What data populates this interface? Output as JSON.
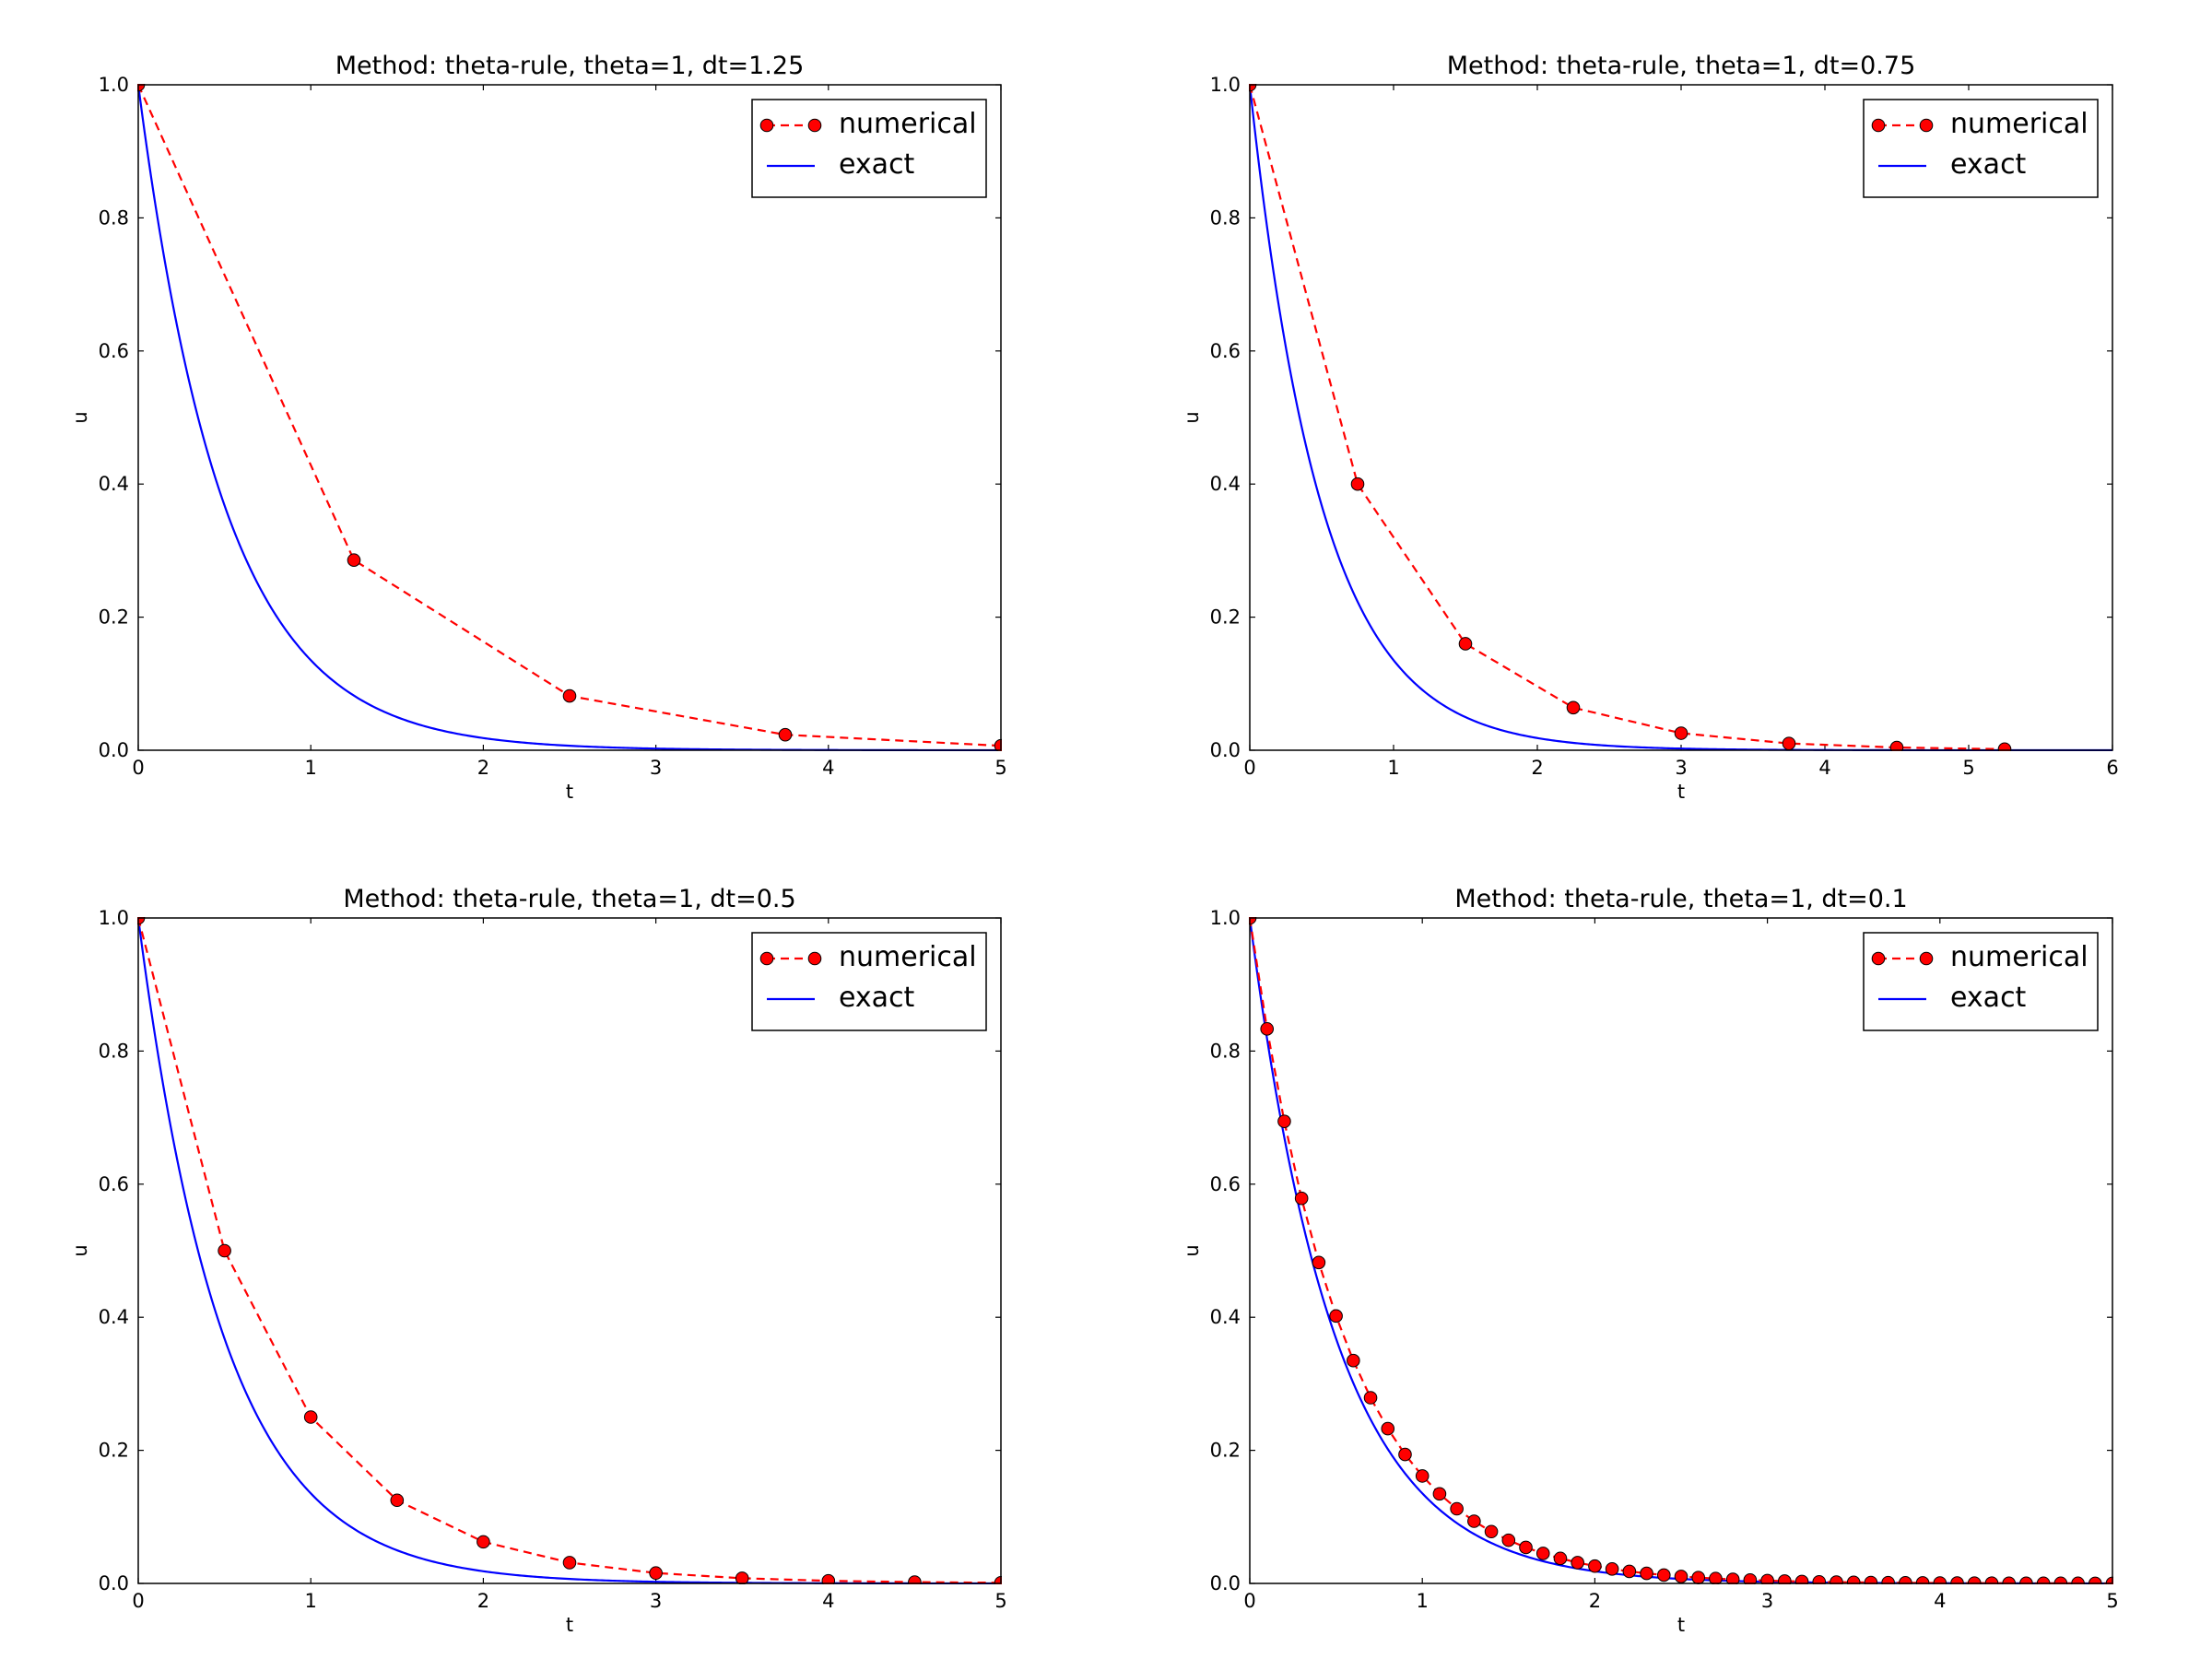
{
  "chart_data": [
    {
      "type": "line",
      "title": "Method: theta-rule, theta=1, dt=1.25",
      "xlabel": "t",
      "ylabel": "u",
      "xlim": [
        0,
        5
      ],
      "ylim": [
        0,
        1.0
      ],
      "xticks": [
        0,
        1,
        2,
        3,
        4,
        5
      ],
      "xtick_labels": [
        "0",
        "1",
        "2",
        "3",
        "4",
        "5"
      ],
      "yticks": [
        0,
        0.2,
        0.4,
        0.6,
        0.8,
        1.0
      ],
      "ytick_labels": [
        "0.0",
        "0.2",
        "0.4",
        "0.6",
        "0.8",
        "1.0"
      ],
      "legend_position": "top-right",
      "series": [
        {
          "name": "numerical",
          "style": "dashed-markers",
          "color": "#ff0000",
          "x": [
            0,
            1.25,
            2.5,
            3.75,
            5.0
          ],
          "y": [
            1.0,
            0.2857,
            0.0816,
            0.0233,
            0.0067
          ]
        },
        {
          "name": "exact",
          "style": "solid",
          "color": "#0000ff",
          "function": "exp(-2t)",
          "x_range": [
            0,
            5
          ]
        }
      ]
    },
    {
      "type": "line",
      "title": "Method: theta-rule, theta=1, dt=0.75",
      "xlabel": "t",
      "ylabel": "u",
      "xlim": [
        0,
        6
      ],
      "ylim": [
        0,
        1.0
      ],
      "xticks": [
        0,
        1,
        2,
        3,
        4,
        5,
        6
      ],
      "xtick_labels": [
        "0",
        "1",
        "2",
        "3",
        "4",
        "5",
        "6"
      ],
      "yticks": [
        0,
        0.2,
        0.4,
        0.6,
        0.8,
        1.0
      ],
      "ytick_labels": [
        "0.0",
        "0.2",
        "0.4",
        "0.6",
        "0.8",
        "1.0"
      ],
      "legend_position": "top-right",
      "series": [
        {
          "name": "numerical",
          "style": "dashed-markers",
          "color": "#ff0000",
          "x": [
            0,
            0.75,
            1.5,
            2.25,
            3.0,
            3.75,
            4.5,
            5.25
          ],
          "y": [
            1.0,
            0.4,
            0.16,
            0.064,
            0.0256,
            0.0102,
            0.0041,
            0.0016
          ]
        },
        {
          "name": "exact",
          "style": "solid",
          "color": "#0000ff",
          "function": "exp(-2t)",
          "x_range": [
            0,
            6
          ]
        }
      ]
    },
    {
      "type": "line",
      "title": "Method: theta-rule, theta=1, dt=0.5",
      "xlabel": "t",
      "ylabel": "u",
      "xlim": [
        0,
        5
      ],
      "ylim": [
        0,
        1.0
      ],
      "xticks": [
        0,
        1,
        2,
        3,
        4,
        5
      ],
      "xtick_labels": [
        "0",
        "1",
        "2",
        "3",
        "4",
        "5"
      ],
      "yticks": [
        0,
        0.2,
        0.4,
        0.6,
        0.8,
        1.0
      ],
      "ytick_labels": [
        "0.0",
        "0.2",
        "0.4",
        "0.6",
        "0.8",
        "1.0"
      ],
      "legend_position": "top-right",
      "series": [
        {
          "name": "numerical",
          "style": "dashed-markers",
          "color": "#ff0000",
          "x": [
            0,
            0.5,
            1.0,
            1.5,
            2.0,
            2.5,
            3.0,
            3.5,
            4.0,
            4.5,
            5.0
          ],
          "y": [
            1.0,
            0.5,
            0.25,
            0.125,
            0.0625,
            0.0313,
            0.0156,
            0.0078,
            0.0039,
            0.002,
            0.001
          ]
        },
        {
          "name": "exact",
          "style": "solid",
          "color": "#0000ff",
          "function": "exp(-2t)",
          "x_range": [
            0,
            5
          ]
        }
      ]
    },
    {
      "type": "line",
      "title": "Method: theta-rule, theta=1, dt=0.1",
      "xlabel": "t",
      "ylabel": "u",
      "xlim": [
        0,
        5
      ],
      "ylim": [
        0,
        1.0
      ],
      "xticks": [
        0,
        1,
        2,
        3,
        4,
        5
      ],
      "xtick_labels": [
        "0",
        "1",
        "2",
        "3",
        "4",
        "5"
      ],
      "yticks": [
        0,
        0.2,
        0.4,
        0.6,
        0.8,
        1.0
      ],
      "ytick_labels": [
        "0.0",
        "0.2",
        "0.4",
        "0.6",
        "0.8",
        "1.0"
      ],
      "legend_position": "top-right",
      "series": [
        {
          "name": "numerical",
          "style": "dashed-markers",
          "color": "#ff0000",
          "x": [
            0,
            0.1,
            0.2,
            0.3,
            0.4,
            0.5,
            0.6,
            0.7,
            0.8,
            0.9,
            1.0,
            1.1,
            1.2,
            1.3,
            1.4,
            1.5,
            1.6,
            1.7,
            1.8,
            1.9,
            2.0,
            2.1,
            2.2,
            2.3,
            2.4,
            2.5,
            2.6,
            2.7,
            2.8,
            2.9,
            3.0,
            3.1,
            3.2,
            3.3,
            3.4,
            3.5,
            3.6,
            3.7,
            3.8,
            3.9,
            4.0,
            4.1,
            4.2,
            4.3,
            4.4,
            4.5,
            4.6,
            4.7,
            4.8,
            4.9,
            5.0
          ],
          "y": [
            1.0,
            0.8333,
            0.6944,
            0.5787,
            0.4823,
            0.4019,
            0.3349,
            0.2791,
            0.2326,
            0.1938,
            0.1615,
            0.1346,
            0.1122,
            0.0935,
            0.0779,
            0.0649,
            0.0541,
            0.0451,
            0.0376,
            0.0313,
            0.0261,
            0.0217,
            0.0181,
            0.0151,
            0.0126,
            0.0105,
            0.0087,
            0.0073,
            0.0061,
            0.0051,
            0.0042,
            0.0035,
            0.0029,
            0.0024,
            0.002,
            0.0017,
            0.0014,
            0.0012,
            0.001,
            0.0008,
            0.0007,
            0.0006,
            0.0005,
            0.0004,
            0.0003,
            0.0003,
            0.0002,
            0.0002,
            0.0002,
            0.0001,
            0.0001
          ]
        },
        {
          "name": "exact",
          "style": "solid",
          "color": "#0000ff",
          "function": "exp(-2t)",
          "x_range": [
            0,
            5
          ]
        }
      ]
    }
  ]
}
